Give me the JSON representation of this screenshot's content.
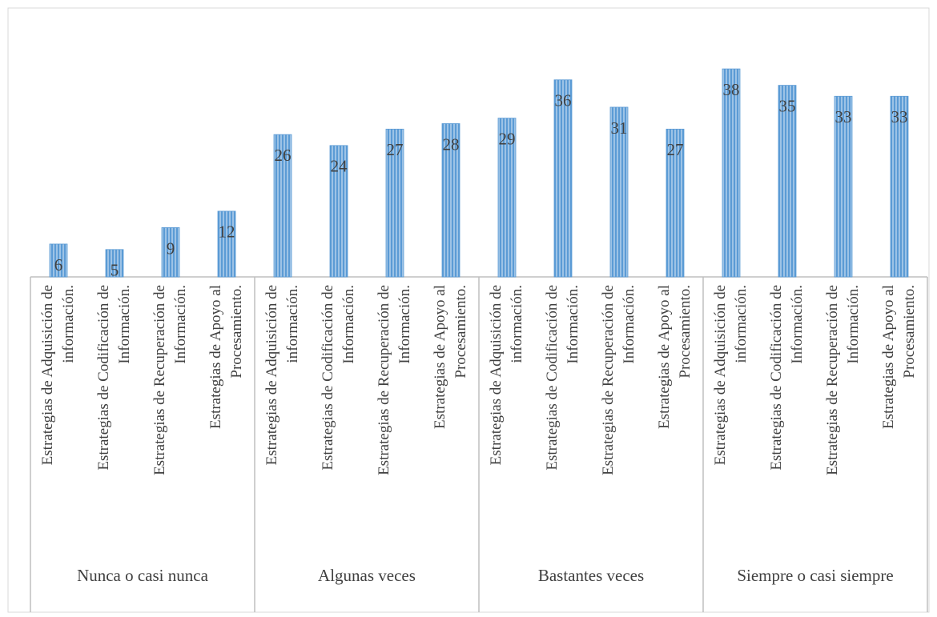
{
  "chart_data": {
    "type": "bar",
    "groups": [
      "Nunca o casi nunca",
      "Algunas veces",
      "Bastantes veces",
      "Siempre o casi siempre"
    ],
    "categories": [
      "Estrategias de Adquisición de información.",
      "Estrategias de Codificación de Información.",
      "Estrategias de Recuperación de Información.",
      "Estrategias de Apoyo al Procesamiento.",
      "Estrategias de Adquisición de información.",
      "Estrategias de Codificación de Información.",
      "Estrategias de Recuperación de Información.",
      "Estrategias de Apoyo al Procesamiento.",
      "Estrategias de Adquisición de información.",
      "Estrategias de Codificación de Información.",
      "Estrategias de Recuperación de Información.",
      "Estrategias de Apoyo al Procesamiento.",
      "Estrategias de Adquisición de información.",
      "Estrategias de Codificación de Información.",
      "Estrategias de Recuperación de Información.",
      "Estrategias de Apoyo al Procesamiento."
    ],
    "values": [
      6,
      5,
      9,
      12,
      26,
      24,
      27,
      28,
      29,
      36,
      31,
      27,
      38,
      35,
      33,
      33
    ],
    "color": "#5b9bd5"
  }
}
